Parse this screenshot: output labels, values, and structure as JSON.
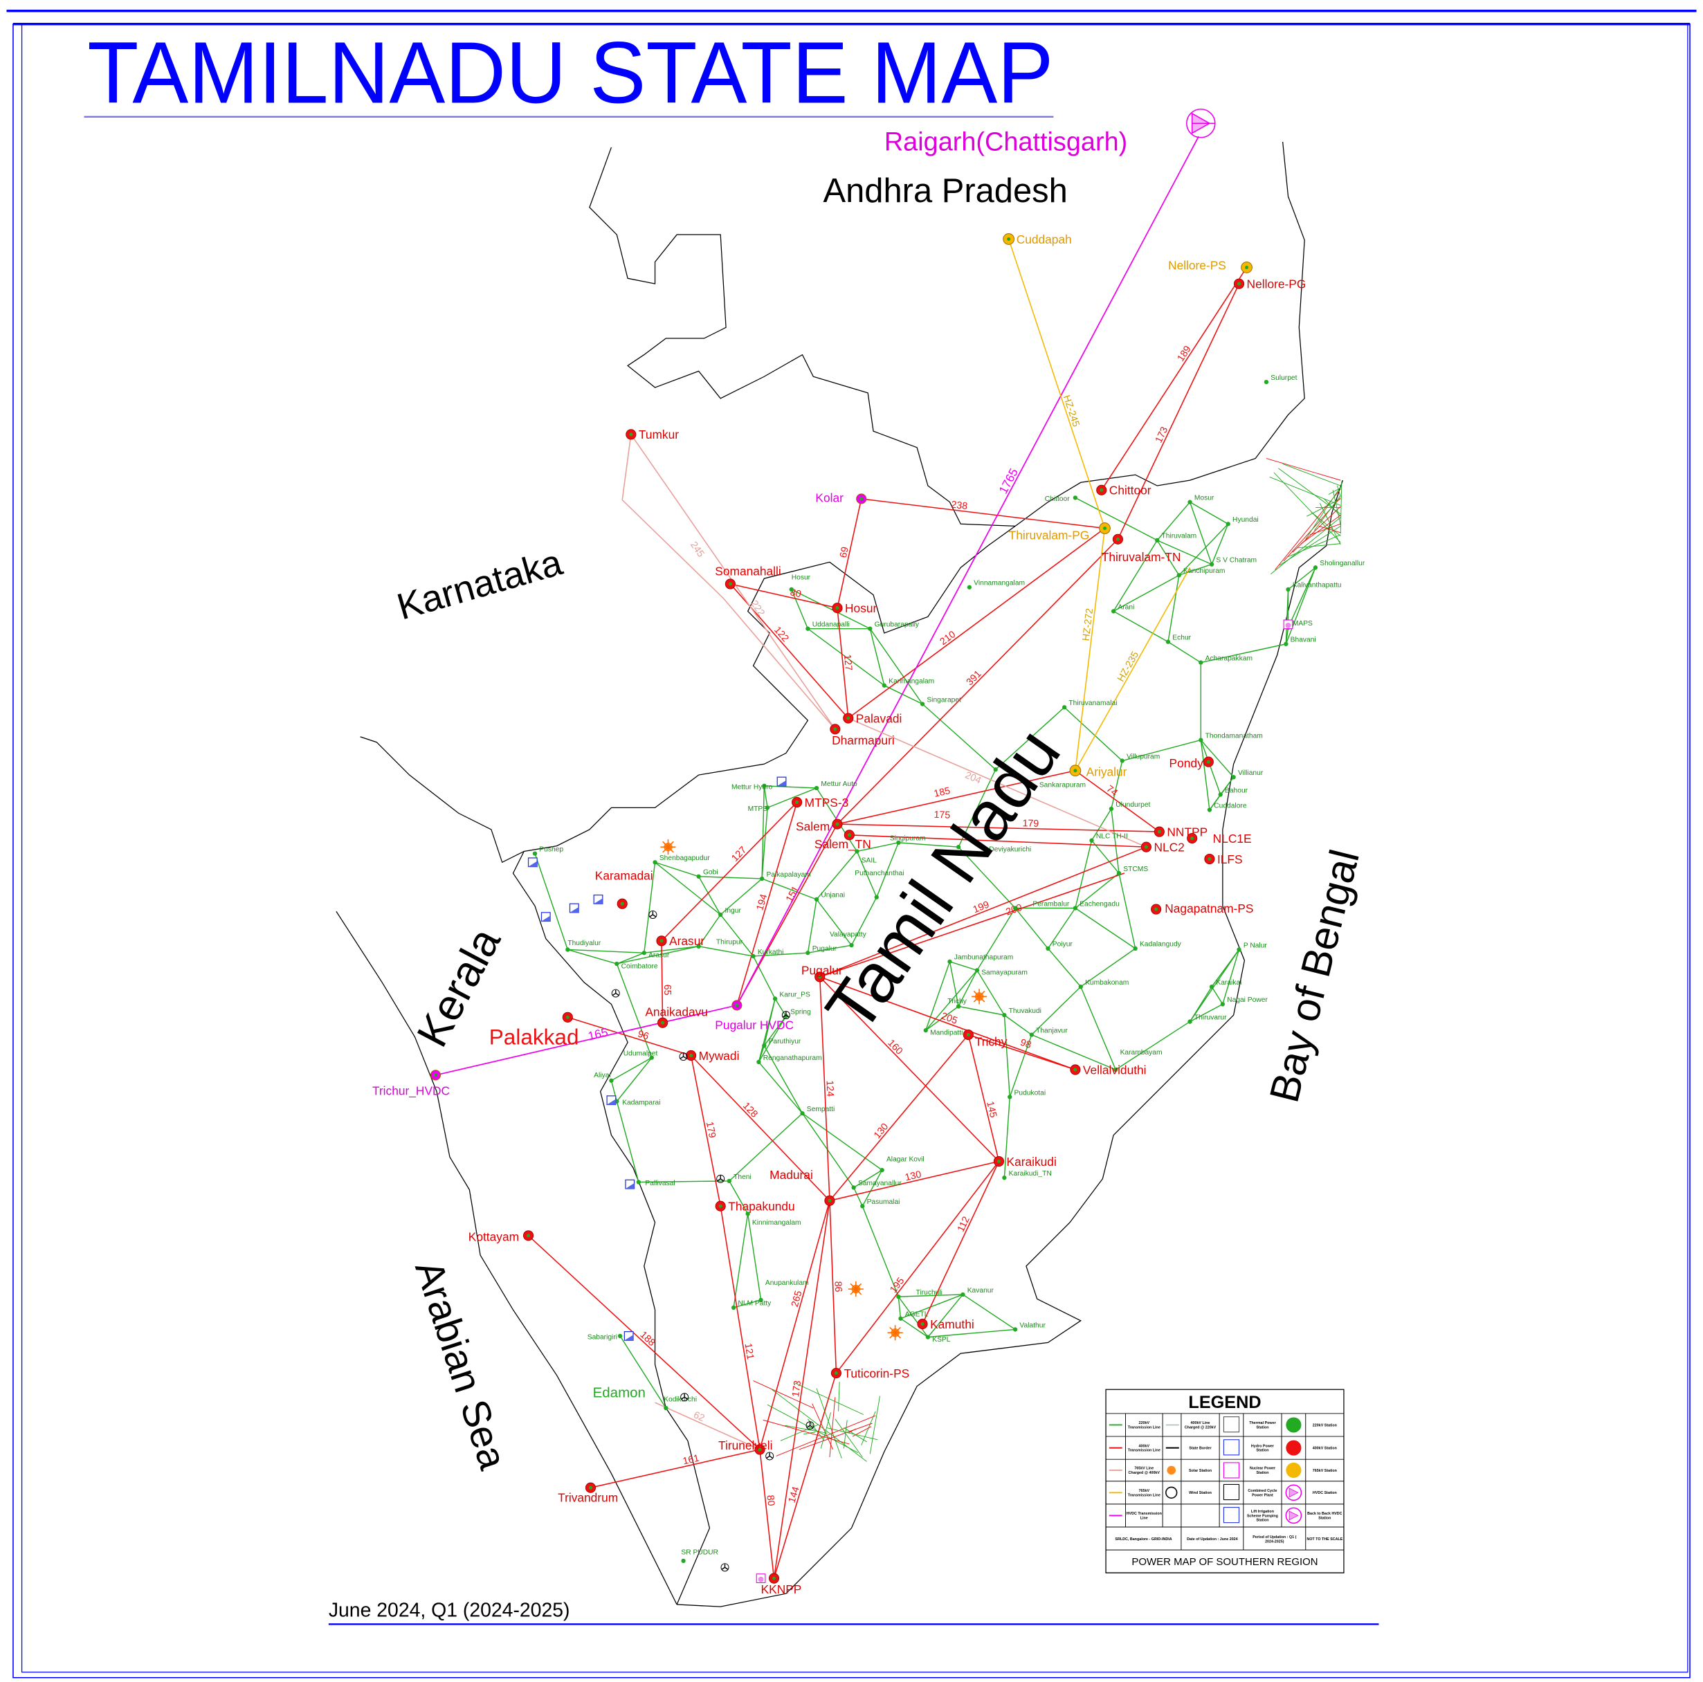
{
  "title": "TAMILNADU STATE MAP",
  "footer_date": "June 2024, Q1 (2024-2025)",
  "regions": {
    "andhra": "Andhra Pradesh",
    "karnataka": "Karnataka",
    "kerala": "Kerala",
    "tamilnadu": "Tamil Nadu",
    "arabian_sea": "Arabian Sea",
    "bay_of_bengal": "Bay of Bengal",
    "palakkad": "Palakkad",
    "edamon": "Edamon",
    "raigarh": "Raigarh(Chattisgarh)"
  },
  "colors": {
    "frame": "#0000ff",
    "kv220": "#22aa22",
    "kv400": "#ee1111",
    "kv765": "#f5b800",
    "kv765_400": "#e8a09a",
    "hvdc": "#ee00ee",
    "border": "#000000"
  },
  "stations": [
    {
      "name": "Cuddapah",
      "type": "765"
    },
    {
      "name": "Nellore-PS",
      "type": "765"
    },
    {
      "name": "Nellore-PG",
      "type": "400"
    },
    {
      "name": "Tumkur",
      "type": "400"
    },
    {
      "name": "Kolar",
      "type": "hvdc"
    },
    {
      "name": "Chittoor",
      "type": "400"
    },
    {
      "name": "Thiruvalam-PG",
      "type": "765"
    },
    {
      "name": "Thiruvalam-TN",
      "type": "400"
    },
    {
      "name": "Somanahalli",
      "type": "400"
    },
    {
      "name": "Hosur",
      "type": "400"
    },
    {
      "name": "Palavadi",
      "type": "400"
    },
    {
      "name": "Dharmapuri",
      "type": "400"
    },
    {
      "name": "MTPS-3",
      "type": "400"
    },
    {
      "name": "Salem",
      "type": "400"
    },
    {
      "name": "Salem_TN",
      "type": "400"
    },
    {
      "name": "Ariyalur",
      "type": "765"
    },
    {
      "name": "Pondy",
      "type": "400"
    },
    {
      "name": "NNTPP",
      "type": "400"
    },
    {
      "name": "NLC2",
      "type": "400"
    },
    {
      "name": "NLC1E",
      "type": "400"
    },
    {
      "name": "ILFS",
      "type": "400"
    },
    {
      "name": "Nagapatnam-PS",
      "type": "400"
    },
    {
      "name": "Karamadai",
      "type": "400"
    },
    {
      "name": "Arasur",
      "type": "400"
    },
    {
      "name": "Pugalur HVDC",
      "type": "hvdc"
    },
    {
      "name": "Pugalur",
      "type": "400"
    },
    {
      "name": "Anaikadavu",
      "type": "400"
    },
    {
      "name": "Mywadi",
      "type": "400"
    },
    {
      "name": "Palakkad-S",
      "type": "400",
      "label": ""
    },
    {
      "name": "Trichur_HVDC",
      "type": "hvdc"
    },
    {
      "name": "Trichy",
      "type": "400"
    },
    {
      "name": "Vellalviduthi",
      "type": "400"
    },
    {
      "name": "Karaikudi",
      "type": "400"
    },
    {
      "name": "Madurai",
      "type": "400"
    },
    {
      "name": "Thapakundu",
      "type": "400"
    },
    {
      "name": "Kottayam",
      "type": "400"
    },
    {
      "name": "Kamuthi",
      "type": "400"
    },
    {
      "name": "Tuticorin-PS",
      "type": "400"
    },
    {
      "name": "Tirunelveli",
      "type": "400"
    },
    {
      "name": "Trivandrum",
      "type": "400"
    },
    {
      "name": "KKNPP",
      "type": "400"
    }
  ],
  "substations_220": [
    "Sulurpet",
    "Chittoor",
    "Mosur",
    "Hyundai",
    "Thiruvalam",
    "S V Chatram",
    "Kanchipuram",
    "Sholinganallur",
    "Kalivanthapattu",
    "MAPS",
    "Bhavani",
    "Arani",
    "Echur",
    "Acharapakkam",
    "Vinnamangalam",
    "Hosur",
    "Uddanapalli",
    "Gurubarapally",
    "Karimangalam",
    "Singarapet",
    "Thiruvanamalai",
    "Thondamanatham",
    "Villupuram",
    "Sankarapuram",
    "Villianur",
    "Bahour",
    "Cuddalore",
    "Ulundurpet",
    "NLC TH-II",
    "STCMS",
    "Eachengadu",
    "Perambalur",
    "Deviyakurichi",
    "Singipuram",
    "Mettur Hydro",
    "Mettur Auto",
    "MTPS",
    "SAIL",
    "Palkapalayam",
    "Gobi",
    "Shenbagapudur",
    "Pushep",
    "Ingur",
    "Unjanai",
    "Puthanchanthai",
    "Thirupur",
    "Arasur",
    "Coimbatore",
    "Thudiyalur",
    "Kurkathi",
    "Pugalur",
    "Valayapatty",
    "Jambunathapuram",
    "Samayapuram",
    "Poiyur",
    "Kadalangudy",
    "P Nalur",
    "Kumbakonam",
    "Karaikal",
    "Nagai Power",
    "Thiruvarur",
    "Thanjavur",
    "Thuvakudi",
    "Mandipatti",
    "Spring",
    "Karur_PS",
    "Paruthiyur",
    "Renganathapuram",
    "Udumalpet",
    "Aliyar",
    "Kadamparai",
    "Pudukotai",
    "Karambayam",
    "Sempatti",
    "Pallivasal",
    "Theni",
    "Alagar Kovil",
    "Samayanallur",
    "Pasumalai",
    "Kinnimangalam",
    "Karaikudi_TN",
    "Anupankulam",
    "Tiruchuli",
    "Kavanur",
    "Valathur",
    "AGETL",
    "KSPL",
    "NLM Patty",
    "Sabarigiri",
    "Kodikurchi",
    "SR PUDUR",
    "Trichy"
  ],
  "lines": [
    {
      "from": "Kolar",
      "to": "Thiruvalam-PG",
      "kv": "400",
      "label": "238"
    },
    {
      "from": "Kolar",
      "to": "Hosur",
      "kv": "400",
      "label": "69"
    },
    {
      "from": "Somanahalli",
      "to": "Hosur",
      "kv": "400",
      "label": "80"
    },
    {
      "from": "Somanahalli",
      "to": "Palavadi",
      "kv": "400",
      "label": "122"
    },
    {
      "from": "Hosur",
      "to": "Palavadi",
      "kv": "400",
      "label": "127"
    },
    {
      "from": "Nellore-PG",
      "to": "Thiruvalam-TN",
      "kv": "400",
      "label": "173"
    },
    {
      "from": "Nellore-PS",
      "to": "Chittoor",
      "kv": "400",
      "label": "189"
    },
    {
      "from": "Thiruvalam-TN",
      "to": "Salem",
      "kv": "400",
      "label": "391"
    },
    {
      "from": "Thiruvalam-PG",
      "to": "Palavadi",
      "kv": "400",
      "label": "210"
    },
    {
      "from": "Ariyalur",
      "to": "NNTPP",
      "kv": "400",
      "label": "74"
    },
    {
      "from": "Salem",
      "to": "Ariyalur",
      "kv": "400",
      "label": "185"
    },
    {
      "from": "Salem",
      "to": "NNTPP",
      "kv": "400",
      "label": "179"
    },
    {
      "from": "Salem_TN",
      "to": "NLC2",
      "kv": "400",
      "label": "175"
    },
    {
      "from": "Pugalur HVDC",
      "to": "MTPS-3",
      "kv": "400",
      "label": "194"
    },
    {
      "from": "Pugalur HVDC",
      "to": "Salem",
      "kv": "400",
      "label": "151"
    },
    {
      "from": "MTPS-3",
      "to": "Arasur",
      "kv": "400",
      "label": "127"
    },
    {
      "from": "Pugalur",
      "to": "NLC2",
      "kv": "400",
      "label": "199"
    },
    {
      "from": "Pugalur",
      "to": "STCMS-R",
      "kv": "400",
      "label": "200"
    },
    {
      "from": "Pugalur",
      "to": "Karaikudi",
      "kv": "400",
      "label": "160"
    },
    {
      "from": "Pugalur",
      "to": "Vellalviduthi",
      "kv": "400",
      "label": "205"
    },
    {
      "from": "Trichy",
      "to": "Karaikudi",
      "kv": "400",
      "label": "145"
    },
    {
      "from": "Trichy",
      "to": "Vellalviduthi",
      "kv": "400",
      "label": "98"
    },
    {
      "from": "Pugalur",
      "to": "Madurai",
      "kv": "400",
      "label": "124"
    },
    {
      "from": "Trichy",
      "to": "Madurai",
      "kv": "400",
      "label": "130"
    },
    {
      "from": "Mywadi",
      "to": "Madurai",
      "kv": "400",
      "label": "128"
    },
    {
      "from": "Mywadi",
      "to": "Thapakundu",
      "kv": "400",
      "label": "179"
    },
    {
      "from": "Palakkad-S",
      "to": "Mywadi",
      "kv": "400",
      "label": "96"
    },
    {
      "from": "Anaikadavu",
      "to": "Arasur",
      "kv": "400",
      "label": "65"
    },
    {
      "from": "Madurai",
      "to": "Karaikudi",
      "kv": "400",
      "label": "130"
    },
    {
      "from": "Thapakundu",
      "to": "Tirunelveli",
      "kv": "400",
      "label": "121"
    },
    {
      "from": "Madurai",
      "to": "Tirunelveli",
      "kv": "400",
      "label": "265"
    },
    {
      "from": "Madurai",
      "to": "Tuticorin-PS",
      "kv": "400",
      "label": "86"
    },
    {
      "from": "Kamuthi",
      "to": "Karaikudi",
      "kv": "400",
      "label": "112"
    },
    {
      "from": "Tuticorin-PS",
      "to": "Karaikudi",
      "kv": "400",
      "label": "195"
    },
    {
      "from": "Kottayam",
      "to": "Tirunelveli",
      "kv": "400",
      "label": "188"
    },
    {
      "from": "Trivandrum",
      "to": "Tirunelveli",
      "kv": "400",
      "label": "161"
    },
    {
      "from": "Tirunelveli",
      "to": "KKNPP",
      "kv": "400",
      "label": "80"
    },
    {
      "from": "Madurai",
      "to": "KKNPP",
      "kv": "400",
      "label": "173"
    },
    {
      "from": "Tuticorin-PS",
      "to": "KKNPP",
      "kv": "400",
      "label": "144"
    },
    {
      "from": "Raigarh",
      "to": "Pugalur HVDC",
      "kv": "hvdc",
      "label": "1765"
    },
    {
      "from": "Trichur_HVDC",
      "to": "Pugalur HVDC",
      "kv": "hvdc",
      "label": "165"
    },
    {
      "from": "Cuddapah",
      "to": "Thiruvalam-PG",
      "kv": "765",
      "label": "HZ-245"
    },
    {
      "from": "Thiruvalam-PG",
      "to": "Ariyalur",
      "kv": "765",
      "label": "HZ-272"
    },
    {
      "from": "Ariyalur",
      "to": "Kanchi-R",
      "kv": "765",
      "label": "HZ-235"
    },
    {
      "from": "Tumkur",
      "to": "Dharmapuri",
      "kv": "765_400",
      "label": "222"
    },
    {
      "from": "Tumkur",
      "to": "Dharmapuri",
      "kv": "765_400",
      "label": "245"
    },
    {
      "from": "Palavadi",
      "to": "NLC2",
      "kv": "765_400",
      "label": "204"
    },
    {
      "from": "Tirunelveli",
      "to": "Edamon",
      "kv": "765_400",
      "label": "62"
    }
  ],
  "legend": {
    "title": "LEGEND",
    "rows": [
      {
        "c1": "220kV Transmission Line",
        "c2": "400kV Line Charged @ 220kV",
        "c3": "Thermal Power Station",
        "c4": "220kV Station"
      },
      {
        "c1": "400kV Transmission Line",
        "c2": "State Border",
        "c3": "Hydro Power Station",
        "c4": "400kV Station"
      },
      {
        "c1": "765kV Line Charged @ 400kV",
        "c2": "Solar Station",
        "c3": "Nuclear Power Station",
        "c4": "765kV Station"
      },
      {
        "c1": "765kV Transmission Line",
        "c2": "Wind Station",
        "c3": "Combined Cycle Power Plant",
        "c4": "HVDC Station"
      },
      {
        "c1": "HVDC Transmission Line",
        "c2": "",
        "c3": "Lift Irrigation Scheme Pumping Station",
        "c4": "Back to Back HVDC Station"
      }
    ],
    "footer": [
      "SRLDC, Bangalore - GRID-INDIA",
      "Date of Updation : June 2024",
      "Period of Updation : Q1 ( 2024-2025)",
      "NOT TO THE SCALE"
    ],
    "caption": "POWER MAP OF SOUTHERN REGION"
  }
}
